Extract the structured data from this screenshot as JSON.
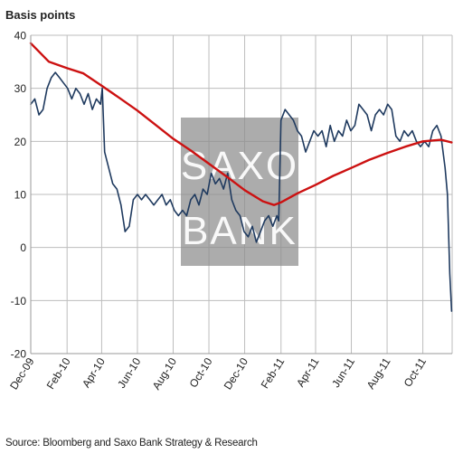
{
  "chart_data": {
    "type": "line",
    "ylabel": "Basis points",
    "source": "Source: Bloomberg and Saxo Bank Strategy & Research",
    "watermark": [
      "SAXO",
      "BANK"
    ],
    "ylim": [
      -20,
      40
    ],
    "yticks": [
      -20,
      -10,
      0,
      10,
      20,
      30,
      40
    ],
    "xlim": [
      "2009-12-01",
      "2011-11-20"
    ],
    "xticks": [
      {
        "label": "Dec-09",
        "date": "2009-12-01"
      },
      {
        "label": "Feb-10",
        "date": "2010-02-01"
      },
      {
        "label": "Apr-10",
        "date": "2010-04-01"
      },
      {
        "label": "Jun-10",
        "date": "2010-06-01"
      },
      {
        "label": "Aug-10",
        "date": "2010-08-01"
      },
      {
        "label": "Oct-10",
        "date": "2010-10-01"
      },
      {
        "label": "Dec-10",
        "date": "2010-12-01"
      },
      {
        "label": "Feb-11",
        "date": "2011-02-01"
      },
      {
        "label": "Apr-11",
        "date": "2011-04-01"
      },
      {
        "label": "Jun-11",
        "date": "2011-06-01"
      },
      {
        "label": "Aug-11",
        "date": "2011-08-01"
      },
      {
        "label": "Oct-11",
        "date": "2011-10-01"
      }
    ],
    "grid": true,
    "colors": {
      "series": "#1f3a5f",
      "average": "#cc1111",
      "grid": "#bdbdbd",
      "watermark": "#8c8c8c"
    },
    "series": [
      {
        "x": [
          "2009-12-01",
          "2009-12-08",
          "2009-12-15",
          "2009-12-22",
          "2009-12-29",
          "2010-01-05",
          "2010-01-12",
          "2010-01-19",
          "2010-01-26",
          "2010-02-02",
          "2010-02-09",
          "2010-02-16",
          "2010-02-23",
          "2010-03-02",
          "2010-03-09",
          "2010-03-16",
          "2010-03-23",
          "2010-03-30",
          "2010-04-02",
          "2010-04-06",
          "2010-04-13",
          "2010-04-20",
          "2010-04-27",
          "2010-05-04",
          "2010-05-11",
          "2010-05-18",
          "2010-05-25",
          "2010-06-01",
          "2010-06-08",
          "2010-06-15",
          "2010-06-22",
          "2010-06-29",
          "2010-07-06",
          "2010-07-13",
          "2010-07-20",
          "2010-07-27",
          "2010-08-03",
          "2010-08-10",
          "2010-08-17",
          "2010-08-24",
          "2010-08-31",
          "2010-09-07",
          "2010-09-14",
          "2010-09-21",
          "2010-09-28",
          "2010-10-05",
          "2010-10-12",
          "2010-10-19",
          "2010-10-26",
          "2010-11-02",
          "2010-11-09",
          "2010-11-16",
          "2010-11-23",
          "2010-11-30",
          "2010-12-07",
          "2010-12-14",
          "2010-12-21",
          "2010-12-28",
          "2011-01-04",
          "2011-01-11",
          "2011-01-18",
          "2011-01-25",
          "2011-01-28",
          "2011-02-01",
          "2011-02-08",
          "2011-02-15",
          "2011-02-22",
          "2011-03-01",
          "2011-03-08",
          "2011-03-15",
          "2011-03-22",
          "2011-03-29",
          "2011-04-05",
          "2011-04-12",
          "2011-04-19",
          "2011-04-26",
          "2011-05-03",
          "2011-05-10",
          "2011-05-17",
          "2011-05-24",
          "2011-05-31",
          "2011-06-07",
          "2011-06-14",
          "2011-06-21",
          "2011-06-28",
          "2011-07-05",
          "2011-07-12",
          "2011-07-19",
          "2011-07-26",
          "2011-08-02",
          "2011-08-09",
          "2011-08-16",
          "2011-08-23",
          "2011-08-30",
          "2011-09-06",
          "2011-09-13",
          "2011-09-20",
          "2011-09-27",
          "2011-10-04",
          "2011-10-11",
          "2011-10-18",
          "2011-10-25",
          "2011-11-01",
          "2011-11-08",
          "2011-11-12",
          "2011-11-16",
          "2011-11-19"
        ],
        "y": [
          27,
          28,
          25,
          26,
          30,
          32,
          33,
          32,
          31,
          30,
          28,
          30,
          29,
          27,
          29,
          26,
          28,
          27,
          30,
          18,
          15,
          12,
          11,
          8,
          3,
          4,
          9,
          10,
          9,
          10,
          9,
          8,
          9,
          10,
          8,
          9,
          7,
          6,
          7,
          6,
          9,
          10,
          8,
          11,
          10,
          14,
          12,
          13,
          11,
          14,
          9,
          7,
          6,
          3,
          2,
          4,
          1,
          3,
          5,
          6,
          4,
          6,
          5,
          24,
          26,
          25,
          24,
          22,
          21,
          18,
          20,
          22,
          21,
          22,
          19,
          23,
          20,
          22,
          21,
          24,
          22,
          23,
          27,
          26,
          25,
          22,
          25,
          26,
          25,
          27,
          26,
          21,
          20,
          22,
          21,
          22,
          20,
          19,
          20,
          19,
          22,
          23,
          21,
          15,
          10,
          -5,
          -12
        ]
      },
      {
        "x": [
          "2009-12-01",
          "2010-01-01",
          "2010-02-01",
          "2010-03-01",
          "2010-04-01",
          "2010-05-01",
          "2010-06-01",
          "2010-07-01",
          "2010-08-01",
          "2010-09-01",
          "2010-10-01",
          "2010-11-01",
          "2010-12-01",
          "2011-01-01",
          "2011-01-20",
          "2011-02-01",
          "2011-03-01",
          "2011-04-01",
          "2011-05-01",
          "2011-06-01",
          "2011-07-01",
          "2011-08-01",
          "2011-09-01",
          "2011-10-01",
          "2011-11-01",
          "2011-11-19"
        ],
        "y": [
          38.5,
          35,
          33.8,
          32.8,
          30.5,
          28.2,
          25.8,
          23.2,
          20.5,
          18.2,
          15.8,
          13.3,
          10.8,
          8.7,
          8,
          8.5,
          10.2,
          11.8,
          13.5,
          15,
          16.5,
          17.8,
          19,
          20,
          20.3,
          19.8
        ]
      }
    ]
  }
}
